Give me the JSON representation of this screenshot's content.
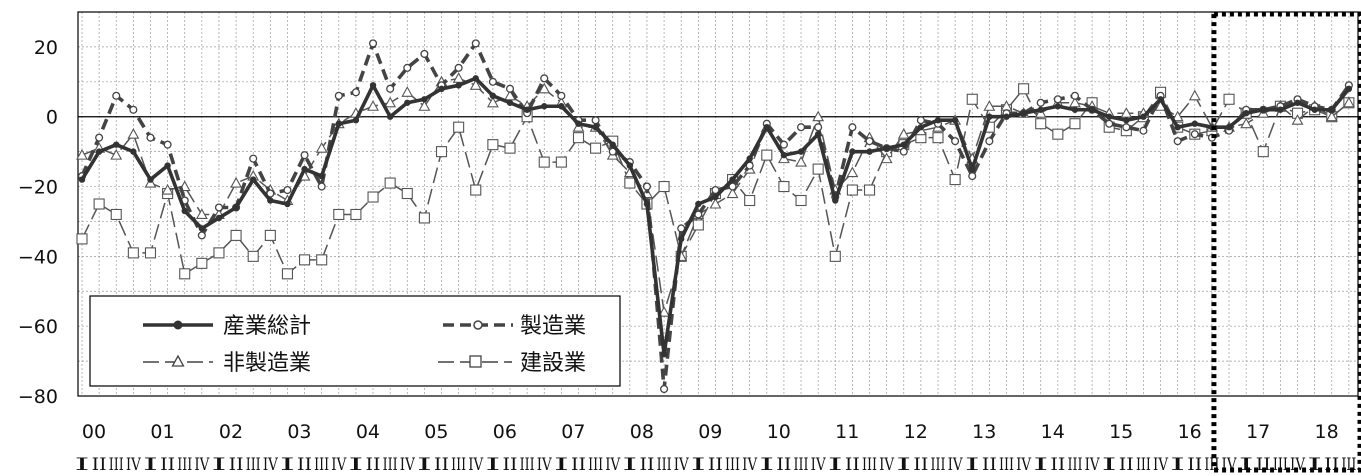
{
  "chart_data": {
    "type": "line",
    "x_year_labels": [
      "00",
      "01",
      "02",
      "03",
      "04",
      "05",
      "06",
      "07",
      "08",
      "09",
      "10",
      "11",
      "12",
      "13",
      "14",
      "15",
      "16",
      "17",
      "18"
    ],
    "quarter_labels": [
      "I",
      "II",
      "III",
      "IV"
    ],
    "ylim": [
      -80,
      30
    ],
    "yticks": [
      20,
      0,
      -20,
      -40,
      -60,
      -80
    ],
    "grid": true,
    "legend": {
      "placement": "bottom-left"
    },
    "highlight_region": {
      "from_quarter_index": 66,
      "style": "dotted-box"
    },
    "series": [
      {
        "name": "産業総計",
        "style": "solid-bold-dot",
        "values": [
          -18,
          -10,
          -8,
          -10,
          -18,
          -14,
          -27,
          -32,
          -29,
          -26,
          -18,
          -24,
          -25,
          -15,
          -17,
          -2,
          -1,
          9,
          0,
          4,
          5,
          8,
          9,
          11,
          6,
          4,
          2,
          3,
          3,
          -2,
          -3,
          -8,
          -14,
          -25,
          -68,
          -35,
          -25,
          -23,
          -18,
          -12,
          -3,
          -11,
          -10,
          -5,
          -24,
          -10,
          -10,
          -9,
          -8,
          -3,
          -1,
          -1,
          -15,
          0,
          0,
          1,
          2,
          3,
          2,
          2,
          0,
          -1,
          0,
          5,
          -3,
          -2,
          -3,
          -3,
          1,
          2,
          2,
          4,
          2,
          2,
          8
        ]
      },
      {
        "name": "製造業",
        "style": "dashed-bold-circle",
        "values": [
          -17,
          -6,
          6,
          2,
          -6,
          -8,
          -24,
          -34,
          -26,
          -26,
          -12,
          -22,
          -21,
          -11,
          -20,
          6,
          7,
          21,
          8,
          14,
          18,
          9,
          14,
          21,
          10,
          8,
          1,
          11,
          6,
          -1,
          -1,
          -10,
          -13,
          -20,
          -78,
          -32,
          -28,
          -21,
          -20,
          -14,
          -2,
          -8,
          -3,
          -3,
          -23,
          -3,
          -7,
          -9,
          -10,
          -1,
          -2,
          -7,
          -17,
          -7,
          1,
          1,
          4,
          5,
          6,
          2,
          -2,
          -3,
          -4,
          6,
          -7,
          -5,
          -6,
          -4,
          2,
          2,
          3,
          5,
          3,
          2,
          9
        ]
      },
      {
        "name": "非製造業",
        "style": "longdash-triangle",
        "values": [
          -11,
          -9,
          -11,
          -5,
          -19,
          -21,
          -20,
          -28,
          -28,
          -19,
          -17,
          -21,
          -24,
          -17,
          -9,
          -2,
          1,
          3,
          4,
          7,
          3,
          10,
          11,
          9,
          4,
          6,
          3,
          8,
          4,
          -3,
          -3,
          -11,
          -16,
          -22,
          -56,
          -40,
          -28,
          -25,
          -22,
          -15,
          -3,
          -12,
          -13,
          0,
          -21,
          -16,
          -6,
          -12,
          -5,
          -4,
          -3,
          -1,
          -12,
          3,
          3,
          1,
          1,
          4,
          4,
          3,
          1,
          1,
          1,
          3,
          0,
          6,
          -3,
          -3,
          -2,
          1,
          3,
          -1,
          3,
          0,
          4
        ]
      },
      {
        "name": "建設業",
        "style": "longdash-square",
        "values": [
          -35,
          -25,
          -28,
          -39,
          -39,
          -22,
          -45,
          -42,
          -39,
          -34,
          -40,
          -34,
          -45,
          -41,
          -41,
          -28,
          -28,
          -23,
          -19,
          -22,
          -29,
          -10,
          -3,
          -21,
          -8,
          -9,
          0,
          -13,
          -13,
          -6,
          -9,
          -7,
          -19,
          -25,
          -20,
          -40,
          -31,
          -22,
          -18,
          -24,
          -11,
          -20,
          -24,
          -15,
          -40,
          -21,
          -21,
          -10,
          -8,
          -6,
          -6,
          -18,
          5,
          -3,
          2,
          8,
          -2,
          -5,
          -2,
          4,
          -3,
          -4,
          0,
          7,
          -3,
          -5,
          -4,
          5,
          1,
          -10,
          3,
          1,
          2,
          0,
          4
        ]
      }
    ]
  }
}
